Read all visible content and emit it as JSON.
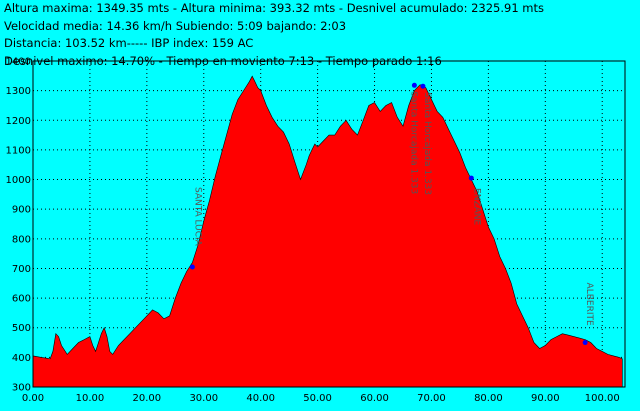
{
  "header": {
    "lines": [
      "Altura maxima: 1349.35 mts - Altura minima: 393.32 mts - Desnivel acumulado: 2325.91 mts",
      " Velocidad media: 14.36 km/h Subiendo: 5:09  bajando: 2:03",
      "Distancia: 103.52 km-----    IBP index: 159 AC",
      "Desnivel maximo: 14.70%  - Tiempo en moviento 7:13 - Tiempo parado 1:16"
    ]
  },
  "colors": {
    "background": "#00ffff",
    "fill": "#ff0000",
    "grid": "#000000",
    "waypoint": "#0000ff"
  },
  "chart_data": {
    "type": "area",
    "title": "",
    "xlabel": "",
    "ylabel": "",
    "xlim": [
      0,
      104
    ],
    "ylim": [
      300,
      1400
    ],
    "x_ticks": [
      "0.00",
      "10.00",
      "20.00",
      "30.00",
      "40.00",
      "50.00",
      "60.00",
      "70.00",
      "80.00",
      "90.00",
      "100.00"
    ],
    "y_ticks": [
      "300",
      "400",
      "500",
      "600",
      "700",
      "800",
      "900",
      "1000",
      "1100",
      "1200",
      "1300",
      "1400"
    ],
    "grid": true,
    "series": [
      {
        "x": [
          0,
          1.5,
          3,
          3.5,
          4,
          4.5,
          5,
          6,
          6.5,
          7,
          8,
          9,
          10,
          10.5,
          11,
          11.5,
          12,
          12.5,
          13,
          13.5,
          14,
          15,
          16,
          17,
          18,
          19,
          20,
          21,
          22,
          23,
          24,
          25,
          26,
          27,
          28,
          29,
          30,
          31,
          32,
          33,
          34,
          35,
          36,
          37,
          38,
          38.5,
          39,
          39.5,
          40,
          41,
          42,
          43,
          44,
          45,
          46,
          47,
          48,
          48.5,
          49,
          49.5,
          50,
          51,
          52,
          53,
          54,
          55,
          56,
          57,
          58,
          59,
          60,
          61,
          62,
          63,
          64,
          65,
          66,
          67,
          68,
          69,
          70,
          71,
          72,
          73,
          74,
          75,
          76,
          77,
          78,
          79,
          80,
          81,
          82,
          83,
          84,
          85,
          86,
          87,
          88,
          89,
          90,
          91,
          92,
          93,
          94,
          95,
          96,
          97,
          98,
          99,
          100,
          101,
          102,
          103,
          103.52
        ],
        "y": [
          405,
          400,
          395,
          420,
          480,
          470,
          440,
          410,
          420,
          430,
          450,
          460,
          470,
          440,
          420,
          450,
          480,
          500,
          470,
          420,
          410,
          440,
          460,
          480,
          500,
          520,
          540,
          560,
          550,
          530,
          540,
          600,
          650,
          690,
          720,
          780,
          860,
          930,
          1010,
          1080,
          1150,
          1220,
          1270,
          1300,
          1330,
          1349,
          1330,
          1310,
          1300,
          1250,
          1210,
          1180,
          1160,
          1120,
          1060,
          1000,
          1050,
          1080,
          1100,
          1120,
          1110,
          1130,
          1150,
          1150,
          1180,
          1200,
          1170,
          1150,
          1200,
          1250,
          1260,
          1230,
          1250,
          1260,
          1210,
          1180,
          1250,
          1300,
          1320,
          1310,
          1270,
          1230,
          1210,
          1170,
          1130,
          1090,
          1040,
          1000,
          960,
          900,
          840,
          800,
          740,
          700,
          650,
          580,
          540,
          500,
          450,
          430,
          440,
          460,
          470,
          480,
          475,
          470,
          465,
          460,
          450,
          430,
          420,
          410,
          405,
          400,
          395
        ]
      }
    ],
    "waypoints": [
      {
        "x": 28,
        "y": 705,
        "label": "SANTA LUCIA"
      },
      {
        "x": 67,
        "y": 1318,
        "label": "Santa Horcajada 1.333"
      },
      {
        "x": 68.5,
        "y": 1315,
        "label": "Santa Horcajada 1.333"
      },
      {
        "x": 77,
        "y": 1005,
        "label": "ENZANE"
      },
      {
        "x": 97,
        "y": 450,
        "label": "ALBERITE"
      }
    ]
  }
}
